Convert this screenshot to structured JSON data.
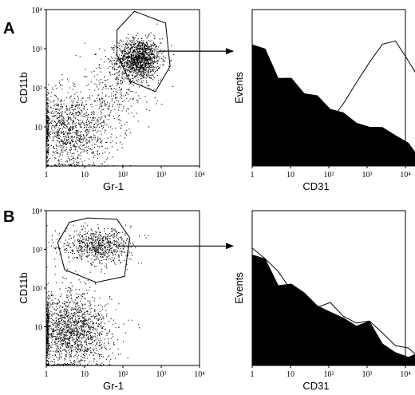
{
  "figure": {
    "panels": [
      {
        "label": "A",
        "scatter": {
          "xlabel": "Gr-1",
          "ylabel": "CD11b",
          "x_ticks": [
            {
              "v": 1,
              "t": "1"
            },
            {
              "v": 10,
              "t": "10"
            },
            {
              "v": 100,
              "t": "10²"
            },
            {
              "v": 1000,
              "t": "10³"
            },
            {
              "v": 10000,
              "t": "10⁴"
            }
          ],
          "y_ticks": [
            {
              "v": 10,
              "t": "10"
            },
            {
              "v": 100,
              "t": "10²"
            },
            {
              "v": 1000,
              "t": "10³"
            },
            {
              "v": 10000,
              "t": "10⁴"
            }
          ]
        },
        "histogram": {
          "xlabel": "CD31",
          "ylabel": "Events",
          "x_ticks": [
            {
              "v": 1,
              "t": "1"
            },
            {
              "v": 10,
              "t": "10"
            },
            {
              "v": 100,
              "t": "10²"
            },
            {
              "v": 1000,
              "t": "10³"
            },
            {
              "v": 10000,
              "t": "10⁴"
            }
          ]
        }
      },
      {
        "label": "B",
        "scatter": {
          "xlabel": "Gr-1",
          "ylabel": "CD11b",
          "x_ticks": [
            {
              "v": 1,
              "t": "1"
            },
            {
              "v": 10,
              "t": "10"
            },
            {
              "v": 100,
              "t": "10²"
            },
            {
              "v": 1000,
              "t": "10³"
            },
            {
              "v": 10000,
              "t": "10⁴"
            }
          ],
          "y_ticks": [
            {
              "v": 10,
              "t": "10"
            },
            {
              "v": 100,
              "t": "10²"
            },
            {
              "v": 1000,
              "t": "10³"
            },
            {
              "v": 10000,
              "t": "10⁴"
            }
          ]
        },
        "histogram": {
          "xlabel": "CD31",
          "ylabel": "Events",
          "x_ticks": [
            {
              "v": 1,
              "t": "1"
            },
            {
              "v": 10,
              "t": "10"
            },
            {
              "v": 100,
              "t": "10²"
            },
            {
              "v": 1000,
              "t": "10³"
            },
            {
              "v": 10000,
              "t": "10⁴"
            }
          ]
        }
      }
    ]
  },
  "chart_data": [
    {
      "type": "scatter",
      "panel": "A",
      "xlabel": "Gr-1",
      "ylabel": "CD11b",
      "xscale": "log",
      "yscale": "log",
      "xlim": [
        1,
        10000
      ],
      "ylim": [
        1,
        10000
      ],
      "populations": [
        {
          "center": [
            260,
            560
          ],
          "spread_decades": [
            0.28,
            0.26
          ],
          "points": 1300
        },
        {
          "center": [
            4,
            8
          ],
          "spread_decades": [
            0.55,
            0.5
          ],
          "points": 1100
        },
        {
          "center": [
            60,
            90
          ],
          "spread_decades": [
            0.5,
            0.5
          ],
          "points": 300
        }
      ],
      "gate": [
        [
          200,
          9000
        ],
        [
          1300,
          4500
        ],
        [
          1700,
          350
        ],
        [
          700,
          80
        ],
        [
          150,
          150
        ],
        [
          70,
          700
        ],
        [
          70,
          3000
        ]
      ]
    },
    {
      "type": "area",
      "panel": "A",
      "xlabel": "CD31",
      "ylabel": "Events",
      "xscale": "log",
      "xlim": [
        1,
        10000
      ],
      "series": [
        {
          "style": "filled",
          "peak": 1,
          "counts": [
            95,
            85,
            70,
            62,
            55,
            48,
            43,
            40,
            36,
            30,
            24,
            18,
            12,
            7,
            4,
            2,
            1,
            0
          ]
        },
        {
          "style": "outline",
          "peak": 10,
          "counts": [
            2,
            3,
            5,
            8,
            14,
            22,
            34,
            48,
            62,
            78,
            88,
            95,
            82,
            60,
            38,
            20,
            8,
            2,
            0
          ]
        }
      ]
    },
    {
      "type": "scatter",
      "panel": "B",
      "xlabel": "Gr-1",
      "ylabel": "CD11b",
      "xscale": "log",
      "yscale": "log",
      "xlim": [
        1,
        10000
      ],
      "ylim": [
        1,
        10000
      ],
      "populations": [
        {
          "center": [
            20,
            1300
          ],
          "spread_decades": [
            0.45,
            0.22
          ],
          "points": 700
        },
        {
          "center": [
            4,
            8
          ],
          "spread_decades": [
            0.55,
            0.5
          ],
          "points": 1600
        }
      ],
      "gate": [
        [
          12,
          6500
        ],
        [
          70,
          6000
        ],
        [
          150,
          2000
        ],
        [
          110,
          200
        ],
        [
          20,
          140
        ],
        [
          3,
          300
        ],
        [
          2,
          1500
        ],
        [
          4,
          5000
        ]
      ]
    },
    {
      "type": "area",
      "panel": "B",
      "xlabel": "CD31",
      "ylabel": "Events",
      "xscale": "log",
      "xlim": [
        1,
        10000
      ],
      "series": [
        {
          "style": "filled",
          "peak": 1,
          "counts": [
            90,
            78,
            66,
            56,
            50,
            44,
            40,
            36,
            32,
            28,
            22,
            16,
            10,
            6,
            3,
            1,
            0
          ]
        },
        {
          "style": "outline",
          "peak": 3,
          "counts": [
            92,
            80,
            68,
            60,
            54,
            48,
            44,
            40,
            36,
            30,
            24,
            18,
            12,
            7,
            4,
            2,
            0
          ]
        }
      ]
    }
  ]
}
